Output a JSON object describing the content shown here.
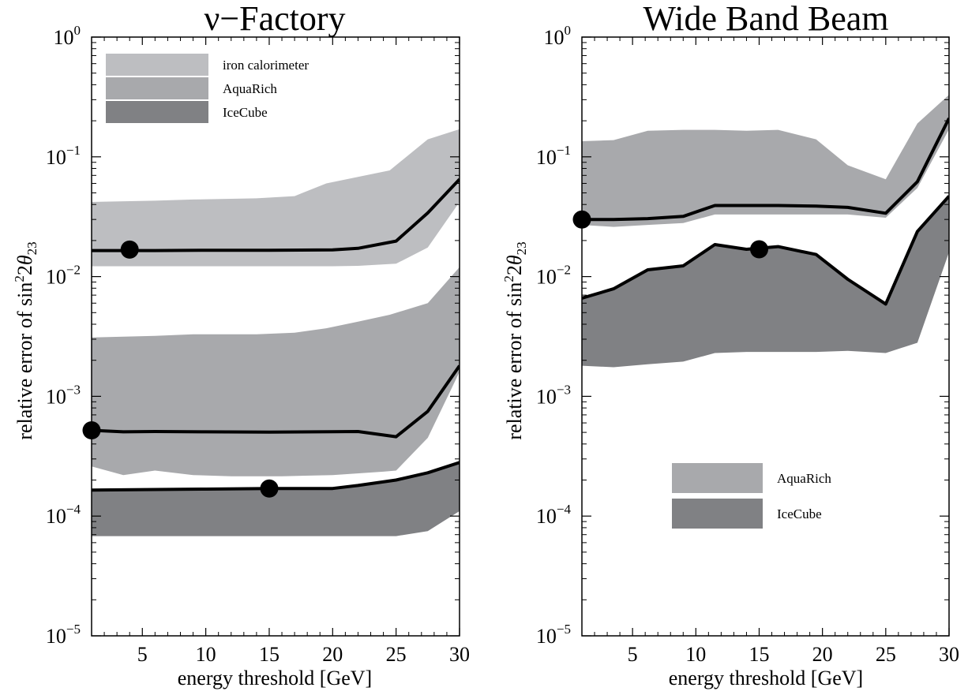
{
  "colors": {
    "iron_band": "#bdbec1",
    "aquarich_band": "#a8a9ac",
    "icecube_band": "#808184",
    "line": "#000000",
    "background": "#ffffff"
  },
  "chart_data": [
    {
      "type": "area",
      "title": "ν−Factory",
      "xlabel": "energy threshold [GeV]",
      "ylabel": "relative error of sin²2θ₂₃",
      "xlim": [
        1,
        30
      ],
      "ylim": [
        1e-05,
        1
      ],
      "yscale": "log",
      "grid": false,
      "legend_position": "top-left",
      "xticks": [
        5,
        10,
        15,
        20,
        25,
        30
      ],
      "yticks": [
        {
          "value": 1e-05,
          "base": "10",
          "exp": "−5"
        },
        {
          "value": 0.0001,
          "base": "10",
          "exp": "−4"
        },
        {
          "value": 0.001,
          "base": "10",
          "exp": "−3"
        },
        {
          "value": 0.01,
          "base": "10",
          "exp": "−2"
        },
        {
          "value": 0.1,
          "base": "10",
          "exp": "−1"
        },
        {
          "value": 1,
          "base": "10",
          "exp": "0"
        }
      ],
      "series": [
        {
          "name": "iron calorimeter",
          "color": "#bdbec1",
          "upper": {
            "x": [
              1,
              6,
              9,
              14,
              17,
              19.5,
              22,
              24.5,
              27.5,
              30
            ],
            "y": [
              0.042,
              0.043,
              0.044,
              0.045,
              0.047,
              0.06,
              0.068,
              0.077,
              0.14,
              0.17
            ]
          },
          "lower": {
            "x": [
              1,
              6,
              10,
              15,
              20,
              22,
              25,
              27.5,
              30
            ],
            "y": [
              0.0122,
              0.0122,
              0.0122,
              0.0122,
              0.0122,
              0.0123,
              0.0128,
              0.0175,
              0.042
            ]
          },
          "central": {
            "x": [
              1,
              6,
              10,
              15,
              20,
              22,
              25,
              27.5,
              30
            ],
            "y": [
              0.0165,
              0.0165,
              0.0166,
              0.0166,
              0.0167,
              0.0172,
              0.0198,
              0.034,
              0.065
            ]
          },
          "marker": {
            "x": 4,
            "y": 0.0168
          }
        },
        {
          "name": "AquaRich",
          "color": "#a8a9ac",
          "upper": {
            "x": [
              1,
              6,
              9,
              14,
              17,
              19.5,
              22,
              24.5,
              27.5,
              30
            ],
            "y": [
              0.0031,
              0.0032,
              0.0033,
              0.0033,
              0.0034,
              0.0037,
              0.0042,
              0.0048,
              0.006,
              0.012
            ]
          },
          "lower": {
            "x": [
              1,
              3.5,
              6,
              9,
              12,
              16,
              20,
              24,
              25,
              27.5,
              30
            ],
            "y": [
              0.00026,
              0.00022,
              0.00024,
              0.00022,
              0.000215,
              0.000215,
              0.00022,
              0.000235,
              0.00024,
              0.00045,
              0.0016
            ]
          },
          "central": {
            "x": [
              1,
              3.5,
              6,
              10,
              15,
              20,
              22,
              25,
              27.5,
              30
            ],
            "y": [
              0.00052,
              0.000505,
              0.000508,
              0.000505,
              0.000503,
              0.000507,
              0.000508,
              0.00046,
              0.00075,
              0.0018
            ]
          },
          "marker": {
            "x": 1,
            "y": 0.00052
          }
        },
        {
          "name": "IceCube",
          "color": "#808184",
          "upper": {
            "x": [
              1,
              10,
              15,
              20,
              22,
              25,
              27.5,
              30
            ],
            "y": [
              0.000165,
              0.000168,
              0.00017,
              0.00017,
              0.00018,
              0.0002,
              0.00023,
              0.00028
            ]
          },
          "lower": {
            "x": [
              1,
              6,
              10,
              15,
              20,
              25,
              27.5,
              30
            ],
            "y": [
              6.8e-05,
              6.8e-05,
              6.8e-05,
              6.8e-05,
              6.8e-05,
              6.8e-05,
              7.5e-05,
              0.00011
            ]
          },
          "central": {
            "x": [
              1,
              10,
              15,
              20,
              22,
              25,
              27.5,
              30
            ],
            "y": [
              0.000165,
              0.000168,
              0.00017,
              0.00017,
              0.00018,
              0.0002,
              0.00023,
              0.00028
            ]
          },
          "marker": {
            "x": 15,
            "y": 0.00017
          }
        }
      ]
    },
    {
      "type": "area",
      "title": "Wide Band Beam",
      "xlabel": "energy threshold [GeV]",
      "ylabel": "relative error of sin²2θ₂₃",
      "xlim": [
        1,
        30
      ],
      "ylim": [
        1e-05,
        1
      ],
      "yscale": "log",
      "grid": false,
      "legend_position": "bottom-center",
      "xticks": [
        5,
        10,
        15,
        20,
        25,
        30
      ],
      "yticks": [
        {
          "value": 1e-05,
          "base": "10",
          "exp": "−5"
        },
        {
          "value": 0.0001,
          "base": "10",
          "exp": "−4"
        },
        {
          "value": 0.001,
          "base": "10",
          "exp": "−3"
        },
        {
          "value": 0.01,
          "base": "10",
          "exp": "−2"
        },
        {
          "value": 0.1,
          "base": "10",
          "exp": "−1"
        },
        {
          "value": 1,
          "base": "10",
          "exp": "0"
        }
      ],
      "series": [
        {
          "name": "AquaRich",
          "color": "#a8a9ac",
          "upper": {
            "x": [
              1,
              3.5,
              6.2,
              9,
              11.5,
              14,
              16.5,
              19.5,
              22,
              25,
              27.5,
              30
            ],
            "y": [
              0.135,
              0.138,
              0.165,
              0.168,
              0.168,
              0.165,
              0.168,
              0.14,
              0.085,
              0.065,
              0.19,
              0.33
            ]
          },
          "lower": {
            "x": [
              1,
              3.5,
              6.2,
              9,
              11.5,
              14,
              16.5,
              19.5,
              22,
              25,
              27.5,
              30
            ],
            "y": [
              0.027,
              0.026,
              0.027,
              0.028,
              0.033,
              0.033,
              0.033,
              0.033,
              0.033,
              0.031,
              0.055,
              0.17
            ]
          },
          "central": {
            "x": [
              1,
              3.5,
              6.2,
              9,
              11.5,
              14,
              16.5,
              19.5,
              22,
              25,
              27.5,
              30
            ],
            "y": [
              0.03,
              0.03,
              0.0305,
              0.0318,
              0.0392,
              0.0392,
              0.0392,
              0.0388,
              0.0378,
              0.0338,
              0.062,
              0.21
            ]
          },
          "marker": {
            "x": 1,
            "y": 0.03
          }
        },
        {
          "name": "IceCube",
          "color": "#808184",
          "upper": {
            "x": [
              1,
              3.5,
              6.2,
              9,
              11.5,
              14,
              16.5,
              19.5,
              22,
              25,
              27.5,
              30
            ],
            "y": [
              0.0066,
              0.0079,
              0.0114,
              0.0123,
              0.0185,
              0.0169,
              0.0178,
              0.0153,
              0.0095,
              0.0059,
              0.0238,
              0.047
            ]
          },
          "lower": {
            "x": [
              1,
              3.5,
              6.2,
              9,
              11.5,
              14,
              16.5,
              19.5,
              22,
              25,
              27.5,
              30
            ],
            "y": [
              0.0018,
              0.00175,
              0.00185,
              0.00195,
              0.0023,
              0.00235,
              0.00235,
              0.00235,
              0.0024,
              0.0023,
              0.0028,
              0.016
            ]
          },
          "central": {
            "x": [
              1,
              3.5,
              6.2,
              9,
              11.5,
              14,
              16.5,
              19.5,
              22,
              25,
              27.5,
              30
            ],
            "y": [
              0.0066,
              0.0079,
              0.0114,
              0.0123,
              0.0185,
              0.0169,
              0.0178,
              0.0153,
              0.0095,
              0.0059,
              0.0238,
              0.047
            ]
          },
          "marker": {
            "x": 15,
            "y": 0.0169
          }
        }
      ]
    }
  ]
}
